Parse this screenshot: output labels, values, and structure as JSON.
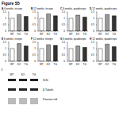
{
  "title": "Figure S5",
  "chart_data": [
    {
      "panel": "A",
      "type": "bar",
      "title": "6 weeks, triceps",
      "categories": [
        "WT",
        "KO",
        "TG"
      ],
      "values": [
        1.0,
        1.3,
        1.15
      ],
      "colors": [
        "#ffffff",
        "#999999",
        "#333333"
      ],
      "ylim": [
        0,
        1.5
      ],
      "yticks": [
        0,
        0.5,
        1,
        1.5
      ]
    },
    {
      "panel": "B",
      "type": "bar",
      "title": "12 weeks, triceps",
      "categories": [
        "WT",
        "KO",
        "TG"
      ],
      "values": [
        1.0,
        1.35,
        1.2
      ],
      "colors": [
        "#ffffff",
        "#999999",
        "#333333"
      ],
      "ylim": [
        0,
        1.5
      ],
      "yticks": [
        0,
        0.5,
        1,
        1.5
      ]
    },
    {
      "panel": "C",
      "type": "bar",
      "title": "6 weeks, quadriceps",
      "categories": [
        "WT",
        "KO",
        "TG"
      ],
      "values": [
        1.0,
        1.25,
        1.1
      ],
      "colors": [
        "#ffffff",
        "#999999",
        "#333333"
      ],
      "ylim": [
        0,
        1.5
      ],
      "yticks": [
        0,
        0.5,
        1,
        1.5
      ]
    },
    {
      "panel": "D",
      "type": "bar",
      "title": "12 weeks, quadriceps",
      "categories": [
        "WT",
        "KO",
        "TG"
      ],
      "values": [
        1.0,
        1.3,
        1.2
      ],
      "colors": [
        "#ffffff",
        "#999999",
        "#333333"
      ],
      "ylim": [
        0,
        1.5
      ],
      "yticks": [
        0,
        0.5,
        1,
        1.5
      ]
    },
    {
      "panel": "E",
      "type": "bar",
      "title": "6 weeks, triceps",
      "categories": [
        "WT",
        "KO",
        "TG"
      ],
      "values": [
        1.0,
        1.4,
        1.2
      ],
      "colors": [
        "#ffffff",
        "#999999",
        "#333333"
      ],
      "ylim": [
        0,
        1.5
      ],
      "yticks": [
        0,
        0.5,
        1,
        1.5
      ]
    },
    {
      "panel": "F",
      "type": "bar",
      "title": "12 weeks, triceps",
      "categories": [
        "WT",
        "KO",
        "TG"
      ],
      "values": [
        1.0,
        1.3,
        1.25
      ],
      "colors": [
        "#ffffff",
        "#999999",
        "#333333"
      ],
      "ylim": [
        0,
        1.5
      ],
      "yticks": [
        0,
        0.5,
        1,
        1.5
      ]
    },
    {
      "panel": "G",
      "type": "bar",
      "title": "6 weeks, quadriceps",
      "categories": [
        "WT",
        "KO",
        "TG"
      ],
      "values": [
        1.0,
        1.2,
        1.1
      ],
      "colors": [
        "#ffffff",
        "#999999",
        "#333333"
      ],
      "ylim": [
        0,
        1.5
      ],
      "yticks": [
        0,
        0.5,
        1,
        1.5
      ]
    },
    {
      "panel": "H",
      "type": "bar",
      "title": "12 weeks, quadriceps",
      "categories": [
        "WT",
        "KO",
        "TG"
      ],
      "values": [
        1.0,
        1.35,
        1.15
      ],
      "colors": [
        "#ffffff",
        "#999999",
        "#333333"
      ],
      "ylim": [
        0,
        1.5
      ],
      "yticks": [
        0,
        0.5,
        1,
        1.5
      ]
    }
  ],
  "blot": {
    "panel": "I",
    "lanes": [
      "WT",
      "KO",
      "TG"
    ],
    "bands": [
      "SOD",
      "β-Tubulin",
      "Ponceau red"
    ]
  }
}
